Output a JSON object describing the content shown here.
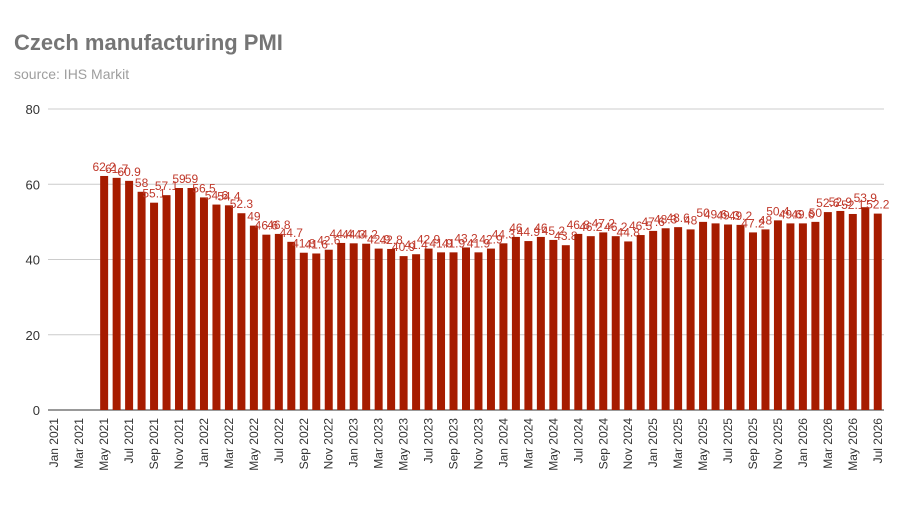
{
  "chart_data": {
    "type": "bar",
    "title": "Czech manufacturing PMI",
    "subtitle": "source: IHS Markit",
    "categories": [
      "Jan 2021",
      null,
      "Mar 2021",
      null,
      "May 2021",
      null,
      "Jul 2021",
      null,
      "Sep 2021",
      null,
      "Nov 2021",
      null,
      "Jan 2022",
      null,
      "Mar 2022",
      null,
      "May 2022",
      null,
      "Jul 2022",
      null,
      "Sep 2022",
      null,
      "Nov 2022",
      null,
      "Jan 2023",
      null,
      "Mar 2023",
      null,
      "May 2023",
      null,
      "Jul 2023",
      null,
      "Sep 2023",
      null,
      "Nov 2023",
      null,
      "Jan 2024",
      null,
      "Mar 2024",
      null,
      "May 2024",
      null,
      "Jul 2024",
      null,
      "Sep 2024",
      null,
      "Nov 2024",
      null,
      "Jan 2025",
      null,
      "Mar 2025",
      null,
      "May 2025",
      null,
      "Jul 2025",
      null,
      "Sep 2025",
      null,
      "Nov 2025",
      null,
      "Jan 2026",
      null,
      "Mar 2026",
      null,
      "May 2026",
      null,
      "Jul 2026"
    ],
    "values": [
      null,
      null,
      null,
      null,
      62.2,
      61.7,
      60.9,
      58.0,
      55.1,
      57.1,
      59.0,
      59.0,
      56.5,
      54.6,
      54.4,
      52.3,
      49.0,
      46.6,
      46.8,
      44.7,
      41.8,
      41.6,
      42.6,
      44.4,
      44.3,
      44.2,
      42.9,
      42.8,
      40.9,
      41.4,
      42.9,
      41.9,
      41.9,
      43.2,
      41.9,
      42.9,
      44.3,
      46.0,
      44.9,
      46.0,
      45.2,
      43.8,
      46.8,
      46.2,
      47.2,
      46.2,
      44.8,
      46.5,
      47.6,
      48.3,
      48.6,
      48.0,
      50.0,
      49.6,
      49.3,
      49.2,
      47.2,
      48.0,
      50.4,
      49.6,
      49.6,
      50.0,
      52.6,
      52.9,
      52.1,
      53.9,
      52.2
    ],
    "color": "#a61c00",
    "label_color": "#c0392b",
    "ylim": [
      0,
      80
    ],
    "yticks": [
      0,
      20,
      40,
      60,
      80
    ],
    "grid": true
  }
}
